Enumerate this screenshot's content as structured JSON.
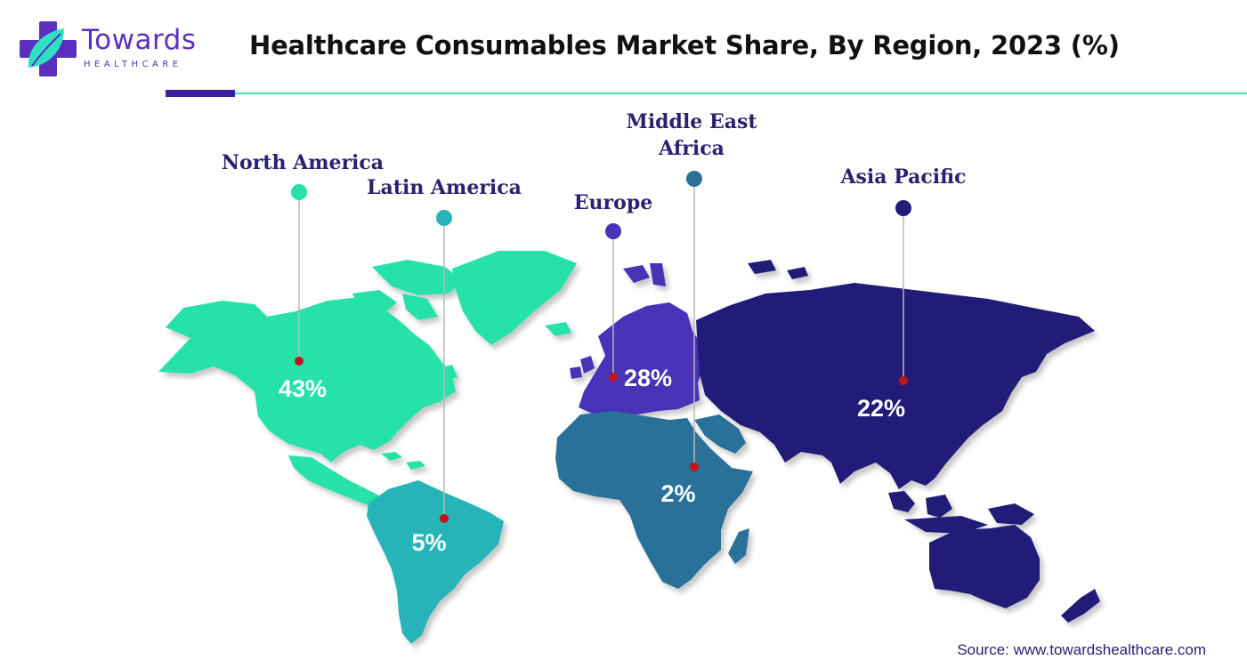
{
  "brand": {
    "name": "Towards",
    "subtitle": "HEALTHCARE"
  },
  "title": "Healthcare Consumables Market Share, By Region, 2023 (%)",
  "source": "Source: www.towardshealthcare.com",
  "colors": {
    "north_america": "#26e2a9",
    "latin_america": "#26b4b8",
    "europe": "#4a33b8",
    "middle_east_africa": "#2a7199",
    "asia_pacific": "#201c78",
    "marker": "#c0141b",
    "leader": "#b8b8b8"
  },
  "chart_data": {
    "type": "map",
    "title": "Healthcare Consumables Market Share, By Region, 2023 (%)",
    "unit": "%",
    "regions": [
      {
        "key": "north_america",
        "name": "North America",
        "value": 43,
        "label": "43%"
      },
      {
        "key": "latin_america",
        "name": "Latin America",
        "value": 5,
        "label": "5%"
      },
      {
        "key": "europe",
        "name": "Europe",
        "value": 28,
        "label": "28%"
      },
      {
        "key": "middle_east_africa",
        "name": "Middle East Africa",
        "value": 2,
        "label": "2%"
      },
      {
        "key": "asia_pacific",
        "name": "Asia Pacific",
        "value": 22,
        "label": "22%"
      }
    ]
  }
}
